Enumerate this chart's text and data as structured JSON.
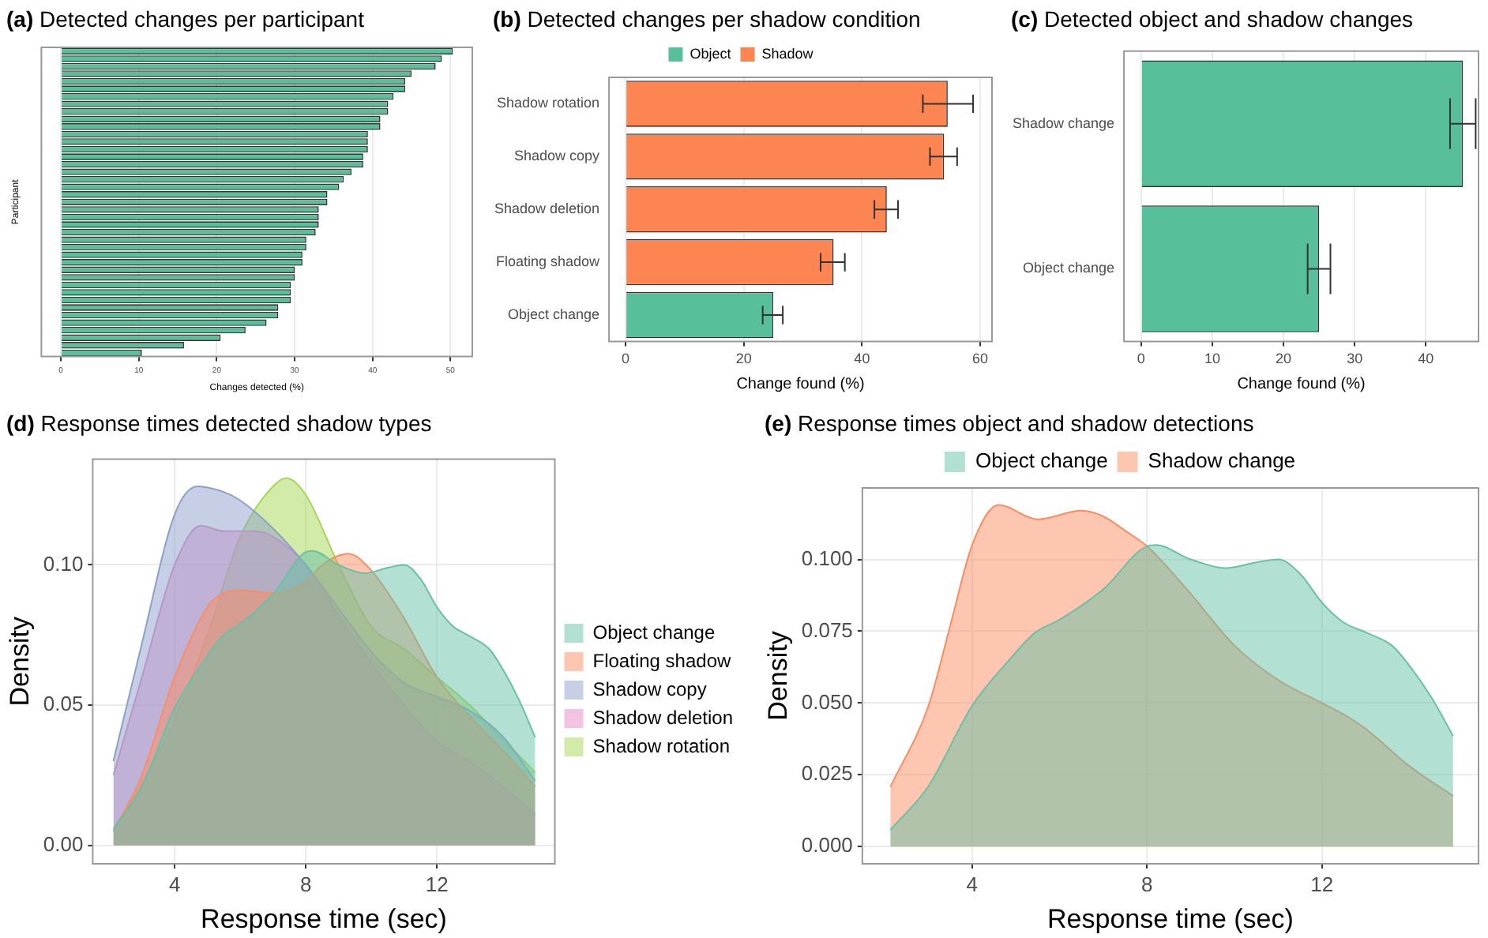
{
  "chart_data": [
    {
      "type": "bar",
      "title": "(a) Detected changes per participant",
      "xlabel": "Changes detected (%)",
      "ylabel": "Participant",
      "orientation": "horizontal",
      "categories": [
        null,
        null,
        null,
        null,
        null,
        null,
        null,
        null,
        null,
        null,
        null,
        null,
        null,
        null,
        null,
        null,
        null,
        null,
        null,
        null,
        null,
        null,
        null,
        null,
        null,
        null,
        null,
        null,
        null,
        null,
        null,
        null,
        null,
        null,
        null,
        null,
        null,
        null,
        null,
        null,
        null
      ],
      "values": [
        50.3,
        48.9,
        48.1,
        45.0,
        44.2,
        44.2,
        42.7,
        42.0,
        42.0,
        41.0,
        41.0,
        39.4,
        39.4,
        39.4,
        38.8,
        38.8,
        37.3,
        36.3,
        35.7,
        34.2,
        34.2,
        33.1,
        33.1,
        33.1,
        32.7,
        31.5,
        31.5,
        31.0,
        31.0,
        30.0,
        30.0,
        29.5,
        29.5,
        29.5,
        27.9,
        27.9,
        26.4,
        23.7,
        20.5,
        15.8,
        10.4
      ],
      "color": "#57bf99",
      "xlim": [
        -2.5,
        52.8
      ],
      "xticks": [
        0,
        10,
        20,
        30,
        40,
        50
      ],
      "grid": true
    },
    {
      "type": "bar",
      "title": "(b) Detected changes per shadow condition",
      "xlabel": "Change found (%)",
      "orientation": "horizontal",
      "categories": [
        "Shadow rotation",
        "Shadow copy",
        "Shadow deletion",
        "Floating shadow",
        "Object change"
      ],
      "series": [
        {
          "name": "Object",
          "color": "#57bf99",
          "values": [
            null,
            null,
            null,
            null,
            25.0
          ],
          "errors": [
            null,
            null,
            null,
            null,
            [
              23.2,
              26.6
            ]
          ]
        },
        {
          "name": "Shadow",
          "color": "#fc8552",
          "values": [
            54.5,
            53.9,
            44.2,
            35.2,
            null
          ],
          "errors": [
            [
              50.3,
              58.8
            ],
            [
              51.5,
              56.1
            ],
            [
              42.1,
              46.1
            ],
            [
              33.0,
              37.1
            ],
            null
          ]
        }
      ],
      "xlim": [
        -2.8,
        62
      ],
      "xticks": [
        0,
        20,
        40,
        60
      ],
      "grid": true,
      "legend": "top"
    },
    {
      "type": "bar",
      "title": "(c) Detected object and shadow changes",
      "xlabel": "Change found (%)",
      "orientation": "horizontal",
      "categories": [
        "Shadow change",
        "Object change"
      ],
      "values": [
        45.2,
        25.0
      ],
      "errors": [
        [
          43.4,
          47.0
        ],
        [
          23.4,
          26.6
        ]
      ],
      "color": "#57bf99",
      "xlim": [
        -2.4,
        47.4
      ],
      "xticks": [
        0,
        10,
        20,
        30,
        40
      ],
      "grid": true
    },
    {
      "type": "area",
      "title": "(d) Response times detected shadow types",
      "xlabel": "Response time (sec)",
      "ylabel": "Density",
      "series": [
        {
          "name": "Object change",
          "color": "#66c2a5",
          "x": [
            2.13,
            3,
            4,
            4.85,
            5.45,
            6,
            7,
            8,
            8.2,
            9,
            9.8,
            10.5,
            11,
            11.5,
            12,
            12.5,
            13,
            13.6,
            14,
            14.5,
            15
          ],
          "values": [
            0.0058,
            0.021,
            0.049,
            0.065,
            0.0746,
            0.079,
            0.0896,
            0.1046,
            0.105,
            0.1,
            0.097,
            0.099,
            0.1,
            0.095,
            0.085,
            0.078,
            0.0746,
            0.07,
            0.063,
            0.052,
            0.0385
          ]
        },
        {
          "name": "Floating shadow",
          "color": "#fc8d62",
          "x": [
            2.13,
            3,
            4,
            5,
            5.5,
            6,
            7,
            8,
            8.5,
            9.3,
            10,
            11,
            12,
            13,
            14,
            15
          ],
          "values": [
            0.005,
            0.025,
            0.06,
            0.085,
            0.09,
            0.091,
            0.09,
            0.094,
            0.1,
            0.104,
            0.098,
            0.081,
            0.06,
            0.046,
            0.034,
            0.021
          ]
        },
        {
          "name": "Shadow copy",
          "color": "#8da0cb",
          "x": [
            2.13,
            3,
            4,
            4.7,
            5.5,
            6,
            7,
            8,
            9,
            10,
            11,
            12,
            13,
            14,
            15
          ],
          "values": [
            0.03,
            0.072,
            0.118,
            0.128,
            0.126,
            0.123,
            0.113,
            0.1,
            0.0845,
            0.069,
            0.058,
            0.053,
            0.048,
            0.039,
            0.023
          ]
        },
        {
          "name": "Shadow deletion",
          "color": "#e78ac3",
          "x": [
            2.13,
            3,
            4,
            4.8,
            5.5,
            6,
            6.5,
            7,
            8,
            9,
            10,
            11,
            12,
            13,
            14,
            15
          ],
          "values": [
            0.025,
            0.06,
            0.1,
            0.114,
            0.112,
            0.112,
            0.112,
            0.11,
            0.1,
            0.082,
            0.065,
            0.05,
            0.037,
            0.03,
            0.021,
            0.011
          ]
        },
        {
          "name": "Shadow rotation",
          "color": "#a6d854",
          "x": [
            2.13,
            3,
            4,
            5,
            6,
            7,
            7.4,
            8,
            9,
            10,
            11,
            12,
            13,
            14,
            15
          ],
          "values": [
            0.005,
            0.022,
            0.045,
            0.075,
            0.11,
            0.128,
            0.131,
            0.125,
            0.1,
            0.078,
            0.07,
            0.06,
            0.05,
            0.038,
            0.026
          ]
        }
      ],
      "xlim": [
        1.5,
        15.6
      ],
      "xticks": [
        4,
        8,
        12
      ],
      "ylim": [
        -0.0066,
        0.1377
      ],
      "yticks": [
        {
          "value": 0,
          "label": "0.00"
        },
        {
          "value": 0.05,
          "label": "0.05"
        },
        {
          "value": 0.1,
          "label": "0.10"
        }
      ],
      "grid": true,
      "legend": "right"
    },
    {
      "type": "area",
      "title": "(e) Response times object and shadow detections",
      "xlabel": "Response time (sec)",
      "ylabel": "Density",
      "series": [
        {
          "name": "Object change",
          "color": "#66c2a5",
          "x": [
            2.13,
            3,
            4,
            4.85,
            5.45,
            6,
            7,
            8,
            8.2,
            9,
            9.8,
            10.5,
            11,
            11.5,
            12,
            12.5,
            13,
            13.6,
            14,
            14.5,
            15
          ],
          "values": [
            0.0058,
            0.021,
            0.049,
            0.065,
            0.0746,
            0.079,
            0.0896,
            0.1046,
            0.105,
            0.1,
            0.097,
            0.099,
            0.1,
            0.095,
            0.085,
            0.078,
            0.0746,
            0.07,
            0.063,
            0.052,
            0.0385
          ]
        },
        {
          "name": "Shadow change",
          "color": "#fc8d62",
          "x": [
            2.13,
            3,
            3.5,
            4,
            4.6,
            5.5,
            6.5,
            7,
            7.5,
            8,
            9,
            10,
            11,
            12,
            12.5,
            13,
            14,
            15
          ],
          "values": [
            0.0208,
            0.049,
            0.077,
            0.105,
            0.119,
            0.114,
            0.117,
            0.115,
            0.11,
            0.1046,
            0.088,
            0.07,
            0.058,
            0.05,
            0.046,
            0.041,
            0.028,
            0.0176
          ]
        }
      ],
      "xlim": [
        1.49,
        15.58
      ],
      "xticks": [
        4,
        8,
        12
      ],
      "ylim": [
        -0.006,
        0.1249
      ],
      "yticks": [
        {
          "value": 0,
          "label": "0.000"
        },
        {
          "value": 0.025,
          "label": "0.025"
        },
        {
          "value": 0.05,
          "label": "0.050"
        },
        {
          "value": 0.075,
          "label": "0.075"
        },
        {
          "value": 0.1,
          "label": "0.100"
        }
      ],
      "grid": true,
      "legend": "top"
    }
  ]
}
